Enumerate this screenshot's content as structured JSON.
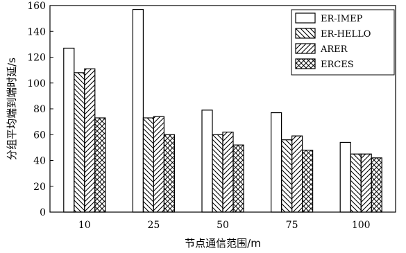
{
  "chart_data": {
    "type": "bar",
    "categories": [
      "10",
      "25",
      "50",
      "75",
      "100"
    ],
    "series": [
      {
        "name": "ER-IMEP",
        "values": [
          127,
          157,
          79,
          77,
          54
        ],
        "pattern": "none"
      },
      {
        "name": "ER-HELLO",
        "values": [
          108,
          73,
          60,
          56,
          45
        ],
        "pattern": "backslash"
      },
      {
        "name": "ARER",
        "values": [
          111,
          74,
          62,
          59,
          45
        ],
        "pattern": "slash"
      },
      {
        "name": "ERCES",
        "values": [
          73,
          60,
          52,
          48,
          42
        ],
        "pattern": "cross"
      }
    ],
    "xlabel": "节点通信范围/m",
    "ylabel": "分组平均端到端时延/s",
    "ylim": [
      0,
      160
    ],
    "yticks": [
      0,
      20,
      40,
      60,
      80,
      100,
      120,
      140,
      160
    ],
    "legend": "top-right",
    "grid": false
  }
}
